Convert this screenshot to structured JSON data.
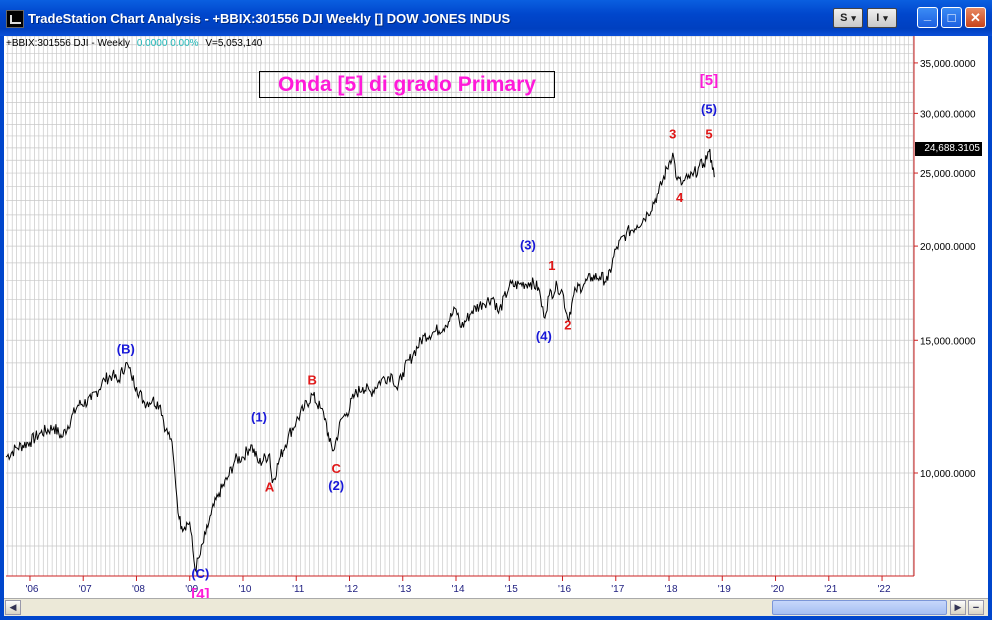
{
  "window": {
    "title": "TradeStation Chart Analysis - +BBIX:301556 DJI Weekly [] DOW JONES INDUS",
    "btn_s": "S",
    "btn_i": "I",
    "dropdown_glyph": "▾",
    "minimize_glyph": "_",
    "maximize_glyph": "□",
    "close_glyph": "✕"
  },
  "info_line": {
    "symbol": "+BBIX:301556 DJI - Weekly",
    "change": "0.0000  0.00%",
    "volume": "V=5,053,140"
  },
  "last_price": "24,688.3105",
  "colors": {
    "wave_blue": "#1818d8",
    "wave_red": "#e01818",
    "wave_magenta": "#ff1ad9",
    "price_line": "#000000",
    "grid": "#c8c8c8",
    "axis": "#cc2020",
    "axis_text": "#202080"
  },
  "chart_data": {
    "type": "line",
    "title": "Onda [5] di grado Primary",
    "xlabel": "",
    "ylabel": "",
    "y_scale": "log",
    "grid": true,
    "xlim": [
      2005.55,
      2022.6
    ],
    "ylim": [
      7300,
      38000
    ],
    "x_tick_labels": [
      "'06",
      "'07",
      "'08",
      "'09",
      "'10",
      "'11",
      "'12",
      "'13",
      "'14",
      "'15",
      "'16",
      "'17",
      "'18",
      "'19",
      "'20",
      "'21",
      "'22"
    ],
    "x_tick_values": [
      2006,
      2007,
      2008,
      2009,
      2010,
      2011,
      2012,
      2013,
      2014,
      2015,
      2016,
      2017,
      2018,
      2019,
      2020,
      2021,
      2022
    ],
    "y_tick_labels": [
      "35,000.0000",
      "30,000.0000",
      "25,000.0000",
      "20,000.0000",
      "15,000.0000",
      "10,000.0000"
    ],
    "y_tick_values": [
      35000,
      30000,
      25000,
      20000,
      15000,
      10000
    ],
    "last_value": 24688.3105,
    "series": [
      {
        "x": [
          2005.55,
          2005.75,
          2006.0,
          2006.2,
          2006.45,
          2006.6,
          2006.9,
          2007.15,
          2007.4,
          2007.55,
          2007.65,
          2007.8,
          2007.9,
          2008.0,
          2008.15,
          2008.3,
          2008.45,
          2008.55,
          2008.65,
          2008.72,
          2008.8,
          2008.85,
          2009.0,
          2009.1,
          2009.2,
          2009.3,
          2009.4,
          2009.55,
          2009.7,
          2009.85,
          2010.0,
          2010.15,
          2010.3,
          2010.5,
          2010.55,
          2010.7,
          2010.85,
          2011.0,
          2011.15,
          2011.3,
          2011.45,
          2011.55,
          2011.62,
          2011.7,
          2011.85,
          2011.95,
          2012.1,
          2012.25,
          2012.4,
          2012.6,
          2012.8,
          2012.9,
          2013.0,
          2013.2,
          2013.4,
          2013.6,
          2013.8,
          2014.0,
          2014.1,
          2014.3,
          2014.5,
          2014.7,
          2014.8,
          2015.0,
          2015.2,
          2015.4,
          2015.55,
          2015.65,
          2015.75,
          2015.9,
          2016.0,
          2016.1,
          2016.25,
          2016.4,
          2016.55,
          2016.7,
          2016.85,
          2017.0,
          2017.2,
          2017.4,
          2017.6,
          2017.8,
          2018.0,
          2018.07,
          2018.15,
          2018.25,
          2018.35,
          2018.45,
          2018.55,
          2018.65,
          2018.75,
          2018.8,
          2018.85
        ],
        "values": [
          10500,
          10800,
          11000,
          11300,
          11500,
          11150,
          12300,
          12500,
          13300,
          13500,
          13200,
          14000,
          13500,
          13000,
          12400,
          12500,
          12300,
          11400,
          11100,
          10000,
          8700,
          8500,
          8600,
          7450,
          7800,
          8300,
          8800,
          9400,
          9800,
          10400,
          10500,
          10900,
          10300,
          10600,
          9700,
          10500,
          11200,
          11700,
          12200,
          12700,
          12200,
          11800,
          11000,
          10700,
          11800,
          12000,
          12700,
          13000,
          12800,
          13300,
          13500,
          12900,
          13600,
          14400,
          15200,
          15400,
          15700,
          16500,
          15600,
          16400,
          16800,
          17100,
          16300,
          17700,
          17800,
          17900,
          17600,
          16100,
          17200,
          17700,
          17400,
          16000,
          17500,
          17800,
          18200,
          18200,
          18000,
          19800,
          20800,
          21300,
          22100,
          23500,
          25800,
          26600,
          24500,
          24200,
          24600,
          24800,
          25400,
          25700,
          26700,
          26000,
          24688
        ]
      }
    ],
    "annotations": [
      {
        "label": "(B)",
        "x": 2007.8,
        "y": 14400,
        "color": "blue"
      },
      {
        "label": "(1)",
        "x": 2010.3,
        "y": 11700,
        "color": "blue"
      },
      {
        "label": "A",
        "x": 2010.5,
        "y": 9450,
        "color": "red"
      },
      {
        "label": "B",
        "x": 2011.3,
        "y": 13100,
        "color": "red"
      },
      {
        "label": "C",
        "x": 2011.75,
        "y": 10000,
        "color": "red"
      },
      {
        "label": "(2)",
        "x": 2011.75,
        "y": 9500,
        "color": "blue"
      },
      {
        "label": "(C)",
        "x": 2009.2,
        "y": 7250,
        "color": "blue"
      },
      {
        "label": "[4]",
        "x": 2009.2,
        "y": 6800,
        "color": "magenta"
      },
      {
        "label": "(3)",
        "x": 2015.35,
        "y": 19800,
        "color": "blue"
      },
      {
        "label": "1",
        "x": 2015.8,
        "y": 18600,
        "color": "red"
      },
      {
        "label": "(4)",
        "x": 2015.65,
        "y": 15000,
        "color": "blue"
      },
      {
        "label": "2",
        "x": 2016.1,
        "y": 15500,
        "color": "red"
      },
      {
        "label": "3",
        "x": 2018.07,
        "y": 27800,
        "color": "red"
      },
      {
        "label": "4",
        "x": 2018.2,
        "y": 22900,
        "color": "red"
      },
      {
        "label": "5",
        "x": 2018.75,
        "y": 27800,
        "color": "red"
      },
      {
        "label": "(5)",
        "x": 2018.75,
        "y": 30000,
        "color": "blue"
      },
      {
        "label": "[5]",
        "x": 2018.75,
        "y": 32700,
        "color": "magenta"
      }
    ]
  }
}
